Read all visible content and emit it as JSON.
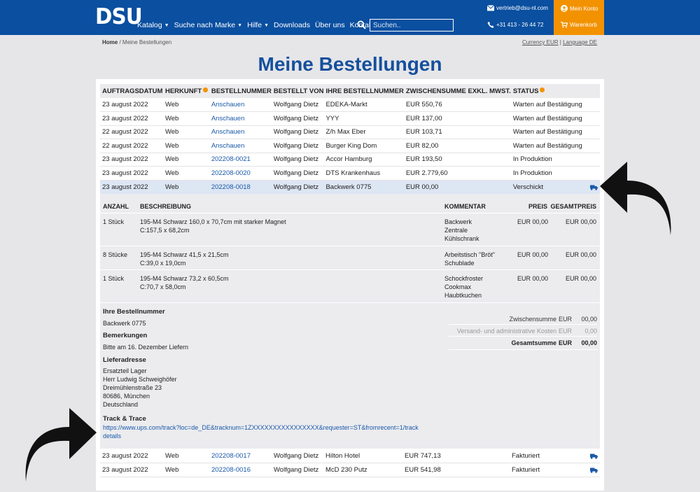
{
  "header": {
    "logo": "DSU",
    "nav": [
      {
        "label": "Katalog",
        "dropdown": true
      },
      {
        "label": "Suche nach Marke",
        "dropdown": true
      },
      {
        "label": "Hilfe",
        "dropdown": true
      },
      {
        "label": "Downloads",
        "dropdown": false
      },
      {
        "label": "Über uns",
        "dropdown": false
      },
      {
        "label": "Kontakt",
        "dropdown": false
      }
    ],
    "search_placeholder": "Suchen..",
    "email": "vertrieb@dsu-nl.com",
    "phone": "+31 413 - 26 44 72",
    "account": "Mein Konto",
    "cart": "Warenkorb",
    "accent": "#f39200",
    "brand": "#0a4fa0"
  },
  "breadcrumb": {
    "home": "Home",
    "separator": " / ",
    "current": "Meine Bestellungen"
  },
  "currency": {
    "currency": "Currency EUR",
    "sep": " | ",
    "language": "Language DE"
  },
  "page_title": "Meine Bestellungen",
  "table": {
    "headers": [
      "AUFTRAGSDATUM",
      "HERKUNFT",
      "BESTELLNUMMER",
      "BESTELLT VON",
      "IHRE BESTELLNUMMER",
      "ZWISCHENSUMME EXKL. MWST.",
      "STATUS"
    ],
    "rows_top": [
      {
        "date": "23 august 2022",
        "origin": "Web",
        "number": "Anschauen",
        "by": "Wolfgang Dietz",
        "ref": "EDEKA-Markt",
        "subtotal": "EUR 550,76",
        "status": "Warten auf Bestätigung"
      },
      {
        "date": "23 august 2022",
        "origin": "Web",
        "number": "Anschauen",
        "by": "Wolfgang Dietz",
        "ref": "YYY",
        "subtotal": "EUR 137,00",
        "status": "Warten auf Bestätigung"
      },
      {
        "date": "22 august 2022",
        "origin": "Web",
        "number": "Anschauen",
        "by": "Wolfgang Dietz",
        "ref": "Z/h Max Eber",
        "subtotal": "EUR 103,71",
        "status": "Warten auf Bestätigung"
      },
      {
        "date": "22 august 2022",
        "origin": "Web",
        "number": "Anschauen",
        "by": "Wolfgang Dietz",
        "ref": "Burger King Dom",
        "subtotal": "EUR 82,00",
        "status": "Warten auf Bestätigung"
      },
      {
        "date": "23 august 2022",
        "origin": "Web",
        "number": "202208-0021",
        "by": "Wolfgang Dietz",
        "ref": "Accor Hamburg",
        "subtotal": "EUR 193,50",
        "status": "In Produktion"
      },
      {
        "date": "23 august 2022",
        "origin": "Web",
        "number": "202208-0020",
        "by": "Wolfgang Dietz",
        "ref": "DTS Krankenhaus",
        "subtotal": "EUR 2.779,60",
        "status": "In Produktion"
      },
      {
        "date": "23 august 2022",
        "origin": "Web",
        "number": "202208-0018",
        "by": "Wolfgang Dietz",
        "ref": "Backwerk 0775",
        "subtotal": "EUR 00,00",
        "status": "Verschickt"
      }
    ],
    "rows_bottom": [
      {
        "date": "23 august 2022",
        "origin": "Web",
        "number": "202208-0017",
        "by": "Wolfgang Dietz",
        "ref": "Hilton Hotel",
        "subtotal": "EUR 747,13",
        "status": "Fakturiert"
      },
      {
        "date": "23 august 2022",
        "origin": "Web",
        "number": "202208-0016",
        "by": "Wolfgang Dietz",
        "ref": "McD 230 Putz",
        "subtotal": "EUR 541,98",
        "status": "Fakturiert"
      }
    ]
  },
  "detail": {
    "headers": {
      "qty": "ANZAHL",
      "desc": "BESCHREIBUNG",
      "comment": "KOMMENTAR",
      "price": "PREIS",
      "total": "GESAMTPREIS"
    },
    "items": [
      {
        "qty": "1 Stück",
        "desc1": "195-M4 Schwarz 160,0 x 70,7cm mit starker Magnet",
        "desc2": "C:157,5 x 68,2cm",
        "comment": [
          "Backwerk",
          "Zentrale",
          "Kühlschrank"
        ],
        "price": "EUR 00,00",
        "total": "EUR 00,00"
      },
      {
        "qty": "8 Stücke",
        "desc1": "195-M4 Schwarz 41,5 x 21,5cm",
        "desc2": "C:39,0 x 19,0cm",
        "comment": [
          "Arbeitstisch \"Bröt\"",
          "Schublade"
        ],
        "price": "EUR 00,00",
        "total": "EUR 00,00"
      },
      {
        "qty": "1 Stück",
        "desc1": "195-M4 Schwarz 73,2 x 60,5cm",
        "desc2": "C:70,7 x 58,0cm",
        "comment": [
          "Schockfroster",
          "Cookmax",
          "Haubtkuchen"
        ],
        "price": "EUR 00,00",
        "total": "EUR 00,00"
      }
    ],
    "order_ref_label": "Ihre Bestellnummer",
    "order_ref": "Backwerk 0775",
    "remarks_label": "Bemerkungen",
    "remarks": "Bitte am 16. Dezember Liefern",
    "address_label": "Lieferadresse",
    "address": [
      "Ersatzteil Lager",
      "Herr Ludwig Schweighöfer",
      "Dreimühlenstraße 23",
      "80686, München",
      "Deutschland"
    ],
    "track_label": "Track & Trace",
    "track_url": "https://www.ups.com/track?loc=de_DE&tracknum=1ZXXXXXXXXXXXXXXXX&requester=ST&fromrecent=1/track",
    "track_details": "details",
    "totals": [
      {
        "label": "Zwischensumme",
        "cur": "EUR",
        "value": "00,00"
      },
      {
        "label": "Versand- und administrative Kosten",
        "cur": "EUR",
        "value": "0,00"
      },
      {
        "label": "Gesamtsumme",
        "cur": "EUR",
        "value": "00,00"
      }
    ]
  }
}
